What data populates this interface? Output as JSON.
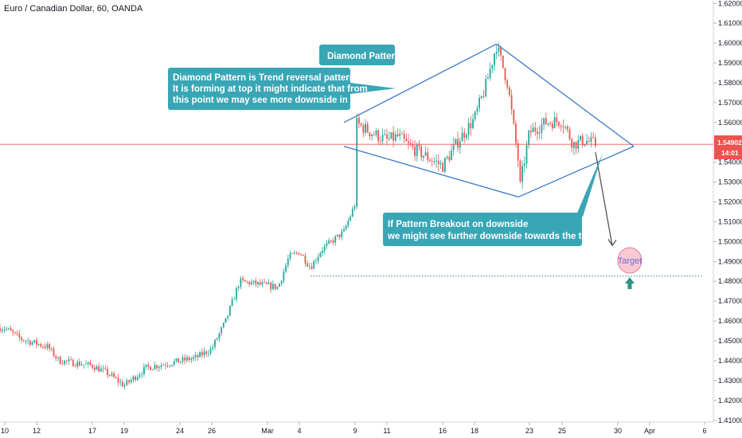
{
  "chart_data": {
    "type": "candlestick",
    "title": "Euro / Canadian Dollar, 60, OANDA",
    "x_ticks": [
      "10",
      "12",
      "17",
      "19",
      "24",
      "26",
      "Mar",
      "4",
      "9",
      "11",
      "16",
      "18",
      "23",
      "25",
      "30",
      "Apr",
      "6"
    ],
    "y_ticks": [
      "1.62000",
      "1.61000",
      "1.60000",
      "1.59000",
      "1.58000",
      "1.57000",
      "1.56000",
      "1.55000",
      "1.54000",
      "1.53000",
      "1.52000",
      "1.51000",
      "1.50000",
      "1.49000",
      "1.48000",
      "1.47000",
      "1.46000",
      "1.45000",
      "1.44000",
      "1.43000",
      "1.42000",
      "1.41000"
    ],
    "ylim": [
      1.4099,
      1.6205
    ],
    "current_price": "1.54902",
    "countdown": "14:01",
    "target_level": 1.4826,
    "price_path": [
      {
        "date": "Feb 7",
        "price": 1.4565
      },
      {
        "date": "Feb 10",
        "price": 1.4565
      },
      {
        "date": "Feb 11",
        "price": 1.451
      },
      {
        "date": "Feb 13",
        "price": 1.447
      },
      {
        "date": "Feb 14",
        "price": 1.44
      },
      {
        "date": "Feb 17",
        "price": 1.4375
      },
      {
        "date": "Feb 18",
        "price": 1.4335
      },
      {
        "date": "Feb 19",
        "price": 1.4275
      },
      {
        "date": "Feb 20",
        "price": 1.432
      },
      {
        "date": "Feb 21",
        "price": 1.4365
      },
      {
        "date": "Feb 25",
        "price": 1.4415
      },
      {
        "date": "Feb 26",
        "price": 1.446
      },
      {
        "date": "Feb 27",
        "price": 1.46
      },
      {
        "date": "Feb 28",
        "price": 1.48
      },
      {
        "date": "Mar 2",
        "price": 1.477
      },
      {
        "date": "Mar 3",
        "price": 1.492
      },
      {
        "date": "Mar 4",
        "price": 1.495
      },
      {
        "date": "Mar 5",
        "price": 1.487
      },
      {
        "date": "Mar 6",
        "price": 1.496
      },
      {
        "date": "Mar 8",
        "price": 1.505
      },
      {
        "date": "Mar 9",
        "price": 1.519
      },
      {
        "date": "Mar 9",
        "price": 1.56
      },
      {
        "date": "Mar 10",
        "price": 1.555
      },
      {
        "date": "Mar 11",
        "price": 1.551
      },
      {
        "date": "Mar 12",
        "price": 1.553
      },
      {
        "date": "Mar 13",
        "price": 1.548
      },
      {
        "date": "Mar 16",
        "price": 1.538
      },
      {
        "date": "Mar 17",
        "price": 1.551
      },
      {
        "date": "Mar 18",
        "price": 1.562
      },
      {
        "date": "Mar 19",
        "price": 1.578
      },
      {
        "date": "Mar 20",
        "price": 1.599
      },
      {
        "date": "Mar 21",
        "price": 1.58
      },
      {
        "date": "Mar 22",
        "price": 1.54
      },
      {
        "date": "Mar 22",
        "price": 1.524
      },
      {
        "date": "Mar 23",
        "price": 1.555
      },
      {
        "date": "Mar 24",
        "price": 1.56
      },
      {
        "date": "Mar 25",
        "price": 1.561
      },
      {
        "date": "Mar 26",
        "price": 1.549
      },
      {
        "date": "Mar 27",
        "price": 1.551
      },
      {
        "date": "Mar 28",
        "price": 1.549
      }
    ],
    "annotations": {
      "diamond_label": "Diamond Pattern",
      "reversal_note": [
        "Diamond Pattern is Trend reversal pattern &",
        "It is forming at top it might indicate that from",
        "this point we may see more downside in pair."
      ],
      "breakout_note": [
        "If Pattern Breakout on downside",
        "we might see further downside towards the target ."
      ],
      "target_label": "Target"
    },
    "colors": {
      "up": "#26a69a",
      "down": "#ef5350",
      "pattern_lines": "#3d79c8",
      "callout_fill": "#39a6b5",
      "price_line": "#ef5350",
      "price_badge": "#ef5350",
      "target_circle": "#f8c9d3",
      "target_arrow": "#2a9486",
      "projection_arrow": "#555555"
    },
    "grid": false
  }
}
